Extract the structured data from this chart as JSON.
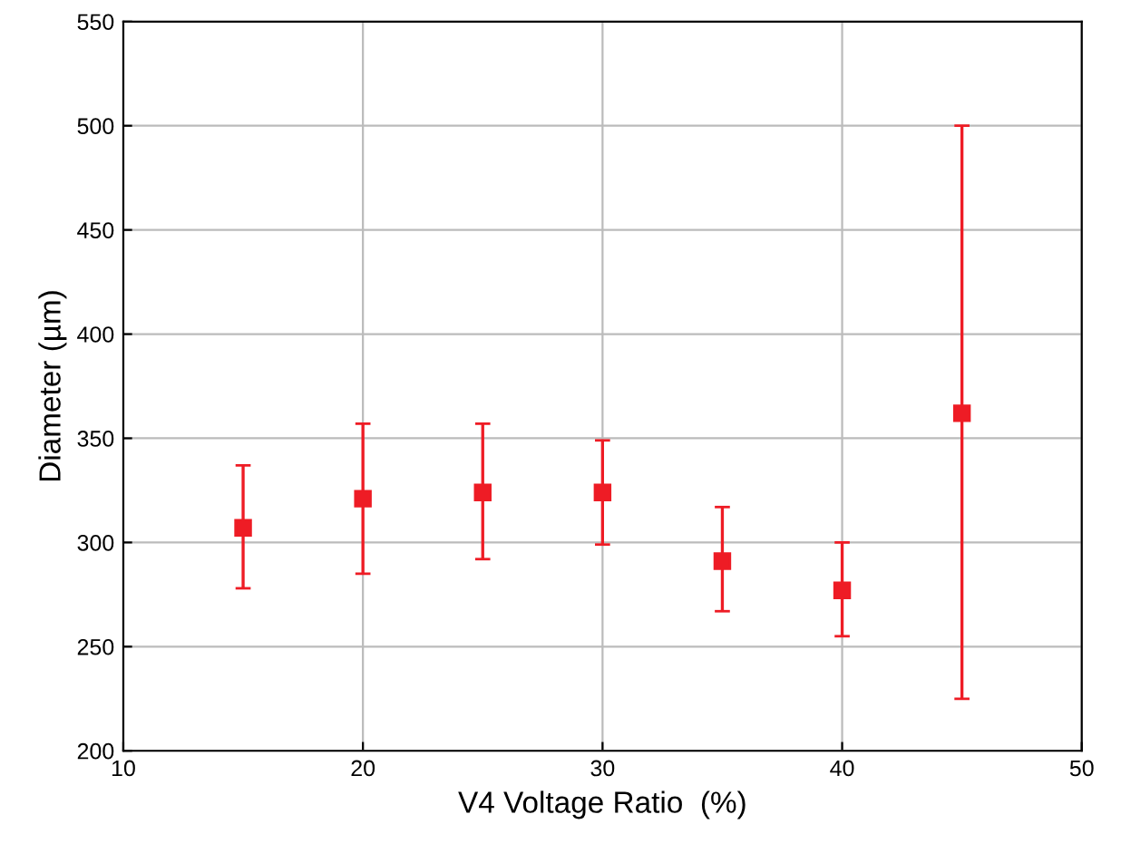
{
  "chart_data": {
    "type": "scatter",
    "xlabel": "V4 Voltage Ratio  (%)",
    "ylabel": "Diameter (µm)",
    "x": [
      15,
      20,
      25,
      30,
      35,
      40,
      45
    ],
    "series": [
      {
        "color": "#ee1c25",
        "values": [
          307,
          321,
          324,
          324,
          291,
          277,
          362
        ],
        "errors": [
          [
            278,
            337
          ],
          [
            285,
            357
          ],
          [
            292,
            357
          ],
          [
            299,
            349
          ],
          [
            267,
            317
          ],
          [
            255,
            300
          ],
          [
            225,
            500
          ]
        ]
      }
    ],
    "xlim": [
      10,
      50
    ],
    "xticks": [
      10,
      20,
      30,
      40,
      50
    ],
    "ylim": [
      200,
      550
    ],
    "yticks": [
      200,
      250,
      300,
      350,
      400,
      450,
      500,
      550
    ],
    "grid": true,
    "marker": "square",
    "legend": false
  }
}
